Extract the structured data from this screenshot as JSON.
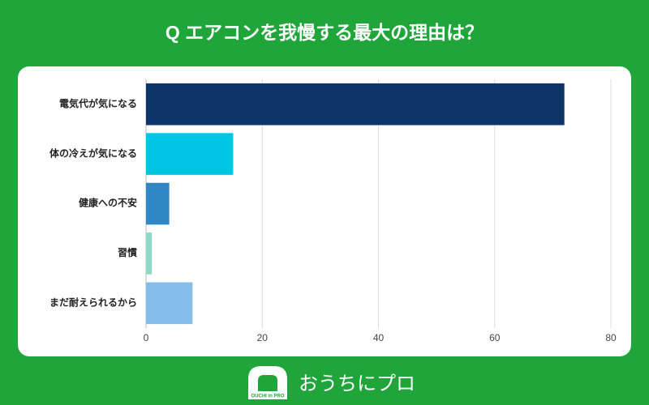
{
  "chart_data": {
    "type": "bar",
    "orientation": "horizontal",
    "title": "Q エアコンを我慢する最大の理由は？",
    "categories": [
      "電気代が気になる",
      "体の冷えが気になる",
      "健康への不安",
      "習慣",
      "まだ耐えられるから"
    ],
    "values": [
      72,
      15,
      4,
      1,
      8
    ],
    "colors": [
      "#0e3567",
      "#00c6e4",
      "#3187c5",
      "#8ed8c5",
      "#86bce9"
    ],
    "xlim": [
      0,
      80
    ],
    "xticks": [
      0,
      20,
      40,
      60,
      80
    ],
    "grid": true
  },
  "footer": {
    "logo_mark": "OUCHI in PRO",
    "brand": "おうちにプロ"
  }
}
